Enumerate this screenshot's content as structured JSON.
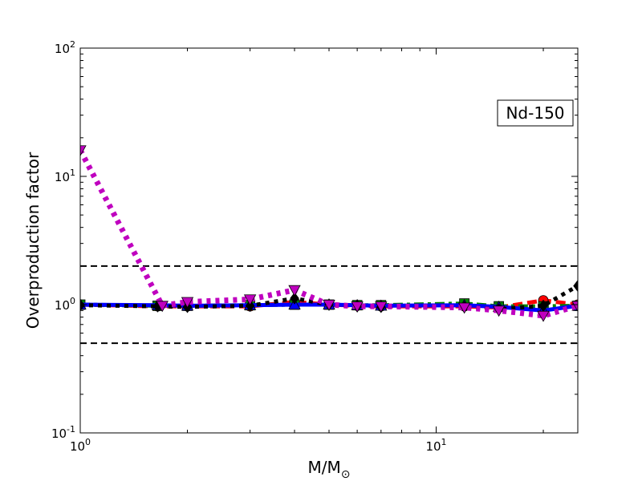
{
  "chart_data": {
    "type": "line",
    "title": "",
    "xlabel": "M/M",
    "xlabel_subscript": "⊙",
    "ylabel": "Overproduction factor",
    "xscale": "log",
    "yscale": "log",
    "xlim": [
      1,
      25
    ],
    "ylim": [
      0.1,
      100
    ],
    "x_ticks": [
      {
        "value": 1,
        "base": "10",
        "exp": "0"
      },
      {
        "value": 10,
        "base": "10",
        "exp": "1"
      }
    ],
    "y_ticks": [
      {
        "value": 0.1,
        "base": "10",
        "exp": "-1"
      },
      {
        "value": 1,
        "base": "10",
        "exp": "0"
      },
      {
        "value": 10,
        "base": "10",
        "exp": "1"
      },
      {
        "value": 100,
        "base": "10",
        "exp": "2"
      }
    ],
    "grid": false,
    "legend": "none",
    "annotation": {
      "text": "Nd-150",
      "position": "upper-right"
    },
    "reference_lines": [
      {
        "y": 2.0,
        "color": "#000000",
        "style": "dashed"
      },
      {
        "y": 0.5,
        "color": "#000000",
        "style": "dashed"
      }
    ],
    "series": [
      {
        "color": "#ff0000",
        "style": "dashed",
        "marker": "circle",
        "x": [
          1,
          1.65,
          2,
          3,
          4,
          5,
          6,
          7,
          12,
          15,
          20,
          25
        ],
        "y": [
          1.0,
          0.97,
          0.97,
          0.97,
          1.05,
          1.0,
          0.98,
          0.97,
          0.97,
          0.95,
          1.08,
          1.0
        ]
      },
      {
        "color": "#008000",
        "style": "dashdot",
        "marker": "square",
        "x": [
          1,
          1.65,
          2,
          3,
          4,
          5,
          6,
          7,
          12,
          15,
          20,
          25
        ],
        "y": [
          1.0,
          0.98,
          0.98,
          0.99,
          1.0,
          1.0,
          0.99,
          0.99,
          1.02,
          0.97,
          0.97,
          0.98
        ]
      },
      {
        "color": "#0000ff",
        "style": "solid",
        "marker": "triangle-up",
        "x": [
          1,
          1.65,
          2,
          3,
          4,
          5,
          6,
          7,
          12,
          15,
          20,
          25
        ],
        "y": [
          1.0,
          0.99,
          0.98,
          0.99,
          1.0,
          1.0,
          0.99,
          0.98,
          0.99,
          0.96,
          0.9,
          0.98
        ]
      },
      {
        "color": "#000000",
        "style": "dotted",
        "marker": "diamond",
        "x": [
          1,
          1.65,
          2,
          3,
          4,
          5,
          6,
          7,
          12,
          15,
          20,
          25
        ],
        "y": [
          0.99,
          0.97,
          0.96,
          0.98,
          1.12,
          1.0,
          0.97,
          0.96,
          0.96,
          0.92,
          0.98,
          1.4
        ]
      },
      {
        "color": "#bf00bf",
        "style": "dotted",
        "marker": "triangle-down",
        "x": [
          1,
          1.7,
          2,
          3,
          4,
          5,
          6,
          7,
          12,
          15,
          20,
          25
        ],
        "y": [
          16.0,
          0.98,
          1.05,
          1.1,
          1.3,
          1.0,
          0.97,
          0.97,
          0.95,
          0.9,
          0.82,
          0.98
        ]
      }
    ]
  }
}
